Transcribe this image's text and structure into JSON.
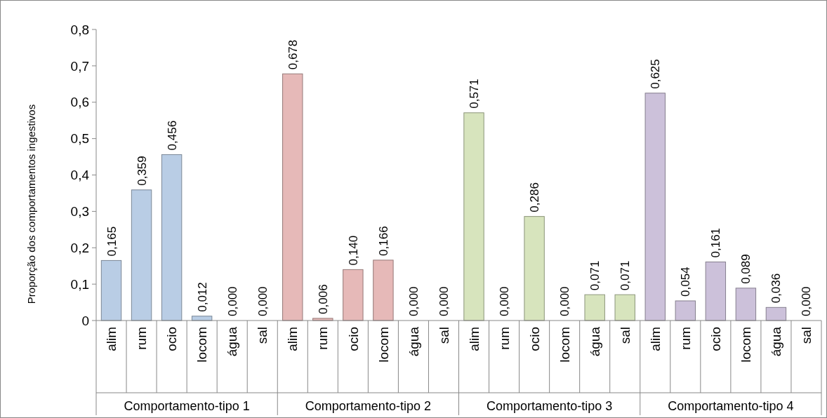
{
  "chart_data": {
    "type": "bar",
    "ylabel": "Proporção dos comportamentos  ingestivos",
    "categories": [
      "alim",
      "rum",
      "ocio",
      "locom",
      "água",
      "sal",
      "alim",
      "rum",
      "ocio",
      "locom",
      "água",
      "sal",
      "alim",
      "rum",
      "ocio",
      "locom",
      "água",
      "sal",
      "alim",
      "rum",
      "ocio",
      "locom",
      "água",
      "sal"
    ],
    "series": [
      {
        "name": "Comportamento-tipo 1",
        "color": "#b9cde5",
        "values": [
          0.165,
          0.359,
          0.456,
          0.012,
          0,
          0,
          null,
          null,
          null,
          null,
          null,
          null,
          null,
          null,
          null,
          null,
          null,
          null,
          null,
          null,
          null,
          null,
          null,
          null
        ],
        "value_labels": [
          "0,165",
          "0,359",
          "0,456",
          "0,012",
          "0,000",
          "0,000",
          null,
          null,
          null,
          null,
          null,
          null,
          null,
          null,
          null,
          null,
          null,
          null,
          null,
          null,
          null,
          null,
          null,
          null
        ]
      },
      {
        "name": "Comportamento-tipo 2",
        "color": "#e6b9b8",
        "values": [
          null,
          null,
          null,
          null,
          null,
          null,
          0.678,
          0.006,
          0.14,
          0.166,
          0,
          0,
          null,
          null,
          null,
          null,
          null,
          null,
          null,
          null,
          null,
          null,
          null,
          null
        ],
        "value_labels": [
          null,
          null,
          null,
          null,
          null,
          null,
          "0,678",
          "0,006",
          "0,140",
          "0,166",
          "0,000",
          "0,000",
          null,
          null,
          null,
          null,
          null,
          null,
          null,
          null,
          null,
          null,
          null,
          null
        ]
      },
      {
        "name": "Comportamento-tipo 3",
        "color": "#d7e4bd",
        "values": [
          null,
          null,
          null,
          null,
          null,
          null,
          null,
          null,
          null,
          null,
          null,
          null,
          0.571,
          0,
          0.286,
          0,
          0.071,
          0.071,
          null,
          null,
          null,
          null,
          null,
          null
        ],
        "value_labels": [
          null,
          null,
          null,
          null,
          null,
          null,
          null,
          null,
          null,
          null,
          null,
          null,
          "0,571",
          "0,000",
          "0,286",
          "0,000",
          "0,071",
          "0,071",
          null,
          null,
          null,
          null,
          null,
          null
        ]
      },
      {
        "name": "Comportamento-tipo 4",
        "color": "#ccc1da",
        "values": [
          null,
          null,
          null,
          null,
          null,
          null,
          null,
          null,
          null,
          null,
          null,
          null,
          null,
          null,
          null,
          null,
          null,
          null,
          0.625,
          0.054,
          0.161,
          0.089,
          0.036,
          0
        ],
        "value_labels": [
          null,
          null,
          null,
          null,
          null,
          null,
          null,
          null,
          null,
          null,
          null,
          null,
          null,
          null,
          null,
          null,
          null,
          null,
          "0,625",
          "0,054",
          "0,161",
          "0,089",
          "0,036",
          "0,000"
        ]
      }
    ],
    "ylim": [
      0,
      0.8
    ],
    "yticks": [
      0,
      {
        "value": 0.1,
        "label": "0,1"
      },
      {
        "value": 0.2,
        "label": "0,2"
      },
      {
        "value": 0.3,
        "label": "0,3"
      },
      {
        "value": 0.4,
        "label": "0,4"
      },
      {
        "value": 0.5,
        "label": "0,5"
      },
      {
        "value": 0.6,
        "label": "0,6"
      },
      {
        "value": 0.7,
        "label": "0,7"
      },
      {
        "value": 0.8,
        "label": "0,8"
      }
    ],
    "grid": false
  }
}
